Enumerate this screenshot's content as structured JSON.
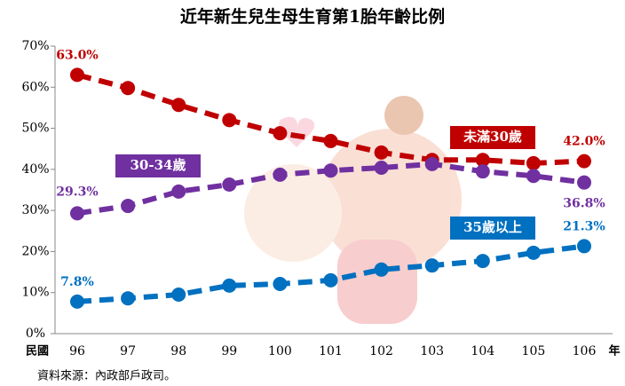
{
  "chart_data": {
    "type": "line",
    "title": "近年新生兒生母生育第1胎年齡比例",
    "x_prefix": "民國",
    "x_suffix": "年",
    "source": "資料來源：內政部戶政司。",
    "categories": [
      "96",
      "97",
      "98",
      "99",
      "100",
      "101",
      "102",
      "103",
      "104",
      "105",
      "106"
    ],
    "series": [
      {
        "name": "未滿30歲",
        "color": "#c00000",
        "values": [
          63.0,
          59.8,
          55.7,
          52.0,
          48.8,
          46.9,
          44.1,
          42.3,
          42.3,
          41.5,
          42.0
        ],
        "value_labels": [
          "63.0%",
          null,
          null,
          null,
          null,
          null,
          null,
          null,
          null,
          null,
          "42.0%"
        ]
      },
      {
        "name": "30-34歲",
        "color": "#7030a0",
        "values": [
          29.3,
          31.1,
          34.6,
          36.3,
          38.7,
          39.7,
          40.4,
          41.3,
          39.5,
          38.4,
          36.8
        ],
        "value_labels": [
          "29.3%",
          null,
          null,
          null,
          null,
          null,
          null,
          null,
          null,
          null,
          "36.8%"
        ]
      },
      {
        "name": "35歲以上",
        "color": "#0070c0",
        "values": [
          7.8,
          8.6,
          9.5,
          11.7,
          12.1,
          13.0,
          15.6,
          16.6,
          17.7,
          19.7,
          21.3
        ],
        "value_labels": [
          "7.8%",
          null,
          null,
          null,
          null,
          null,
          null,
          null,
          null,
          null,
          "21.3%"
        ]
      }
    ],
    "ylim": [
      0,
      70
    ],
    "yticks": [
      {
        "value": 0,
        "label": "0%"
      },
      {
        "value": 10,
        "label": "10%"
      },
      {
        "value": 20,
        "label": "20%"
      },
      {
        "value": 30,
        "label": "30%"
      },
      {
        "value": 40,
        "label": "40%"
      },
      {
        "value": 50,
        "label": "50%"
      },
      {
        "value": 60,
        "label": "60%"
      },
      {
        "value": 70,
        "label": "70%"
      }
    ],
    "grid": false
  }
}
